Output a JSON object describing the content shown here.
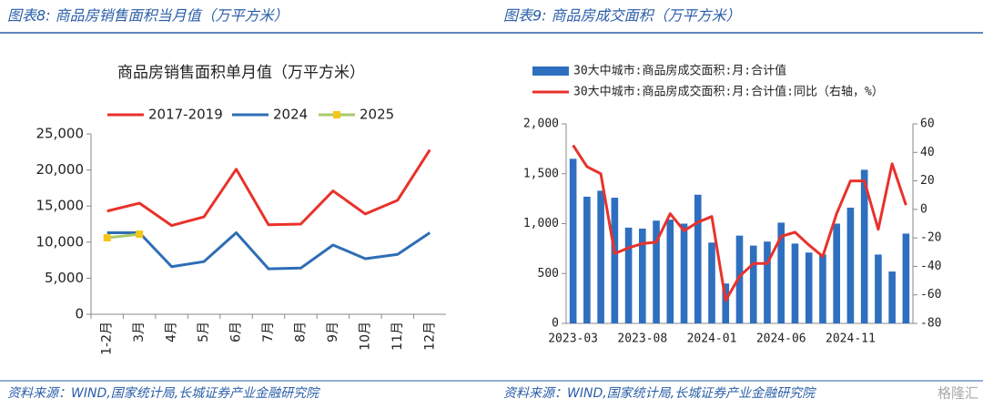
{
  "chart_data": [
    {
      "type": "line",
      "caption": "图表8:  商品房销售面积当月值（万平方米）",
      "title": "商品房销售面积单月值（万平方米）",
      "source": "资料来源：WIND,国家统计局,长城证券产业金融研究院",
      "categories": [
        "1-2月",
        "3月",
        "4月",
        "5月",
        "6月",
        "7月",
        "8月",
        "9月",
        "10月",
        "11月",
        "12月"
      ],
      "series": [
        {
          "name": "2017-2019",
          "color": "#e8322b",
          "values": [
            14300,
            15400,
            12300,
            13500,
            20100,
            12400,
            12500,
            17100,
            13900,
            15800,
            22800
          ]
        },
        {
          "name": "2024",
          "color": "#2e6db5",
          "values": [
            11300,
            11300,
            6600,
            7300,
            11300,
            6300,
            6400,
            9600,
            7700,
            8300,
            11300
          ]
        },
        {
          "name": "2025",
          "color": "#a9c96a",
          "marker_color": "#f5c518",
          "values": [
            10600,
            11100,
            null,
            null,
            null,
            null,
            null,
            null,
            null,
            null,
            null
          ]
        }
      ],
      "ylim": [
        0,
        25000
      ],
      "yticks": [
        0,
        {
          "value": 5000,
          "label": "5,000"
        },
        {
          "value": 10000,
          "label": "10,000"
        },
        {
          "value": 15000,
          "label": "15,000"
        },
        {
          "value": 20000,
          "label": "20,000"
        },
        {
          "value": 25000,
          "label": "25,000"
        }
      ],
      "legend": "top"
    },
    {
      "type": "combo",
      "caption": "图表9:  商品房成交面积（万平方米）",
      "source": "资料来源：WIND,国家统计局,长城证券产业金融研究院",
      "categories": [
        "2023-03",
        null,
        null,
        null,
        null,
        "2023-08",
        null,
        null,
        null,
        null,
        "2024-01",
        null,
        null,
        null,
        null,
        "2024-06",
        null,
        null,
        null,
        null,
        "2024-11",
        null,
        null,
        null,
        null
      ],
      "series": [
        {
          "name": "30大中城市:商品房成交面积:月:合计值",
          "color": "#2f6fbf",
          "values": [
            1650,
            1270,
            1330,
            1260,
            960,
            950,
            1030,
            1040,
            1000,
            1290,
            810,
            400,
            880,
            780,
            820,
            1010,
            800,
            710,
            690,
            1000,
            1160,
            1540,
            690,
            520,
            900
          ]
        },
        {
          "name": "30大中城市:商品房成交面积:月:合计值:同比（右轴，%）",
          "color": "#e8322b",
          "axis": "y2",
          "values": [
            45,
            30,
            25,
            -31,
            -27,
            -24,
            -23,
            -3,
            -15,
            -9,
            -5,
            -64,
            -47,
            -38,
            -38,
            -19,
            -16,
            -25,
            -33,
            -3,
            20,
            20,
            -14,
            32,
            3
          ]
        }
      ],
      "ylim": [
        0,
        2000
      ],
      "yticks": [
        0,
        500,
        {
          "value": 1000,
          "label": "1,000"
        },
        {
          "value": 1500,
          "label": "1,500"
        },
        {
          "value": 2000,
          "label": "2,000"
        }
      ],
      "y2lim": [
        -80,
        60
      ],
      "y2ticks": [
        -80,
        -60,
        -40,
        -20,
        0,
        20,
        40,
        60
      ],
      "legend": "top-left"
    }
  ],
  "watermark": "格隆汇"
}
